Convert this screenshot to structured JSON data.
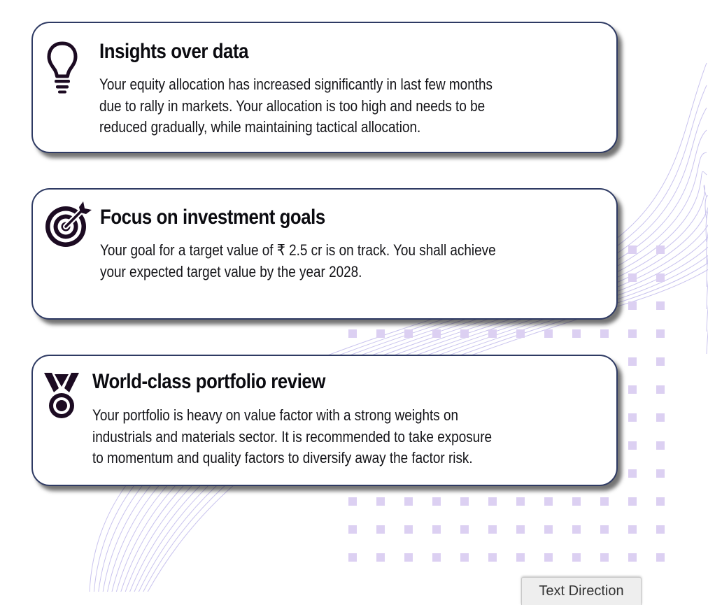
{
  "cards": [
    {
      "icon": "lightbulb-icon",
      "title": "Insights over data",
      "lines": [
        "Your equity allocation has increased significantly in last few months",
        "due to rally in markets. Your allocation is too high and needs to be",
        "reduced gradually, while maintaining tactical allocation."
      ]
    },
    {
      "icon": "target-icon",
      "title": "Focus on investment goals",
      "lines": [
        "Your goal for a target value of ₹ 2.5 cr is on track. You shall achieve",
        "your expected target value by the year 2028."
      ]
    },
    {
      "icon": "medal-icon",
      "title": "World-class portfolio review",
      "lines": [
        "Your portfolio is heavy on value factor with a strong weights on",
        "industrials and materials sector. It is recommended to take exposure",
        "to momentum and quality factors to diversify away the factor risk."
      ]
    }
  ],
  "text_direction_button": {
    "label": "Text Direction"
  },
  "colors": {
    "card_border": "#2e3a63",
    "icon": "#1c0b22",
    "dots": "#dcd0f2",
    "bg_lines": "#c9c3ee"
  }
}
